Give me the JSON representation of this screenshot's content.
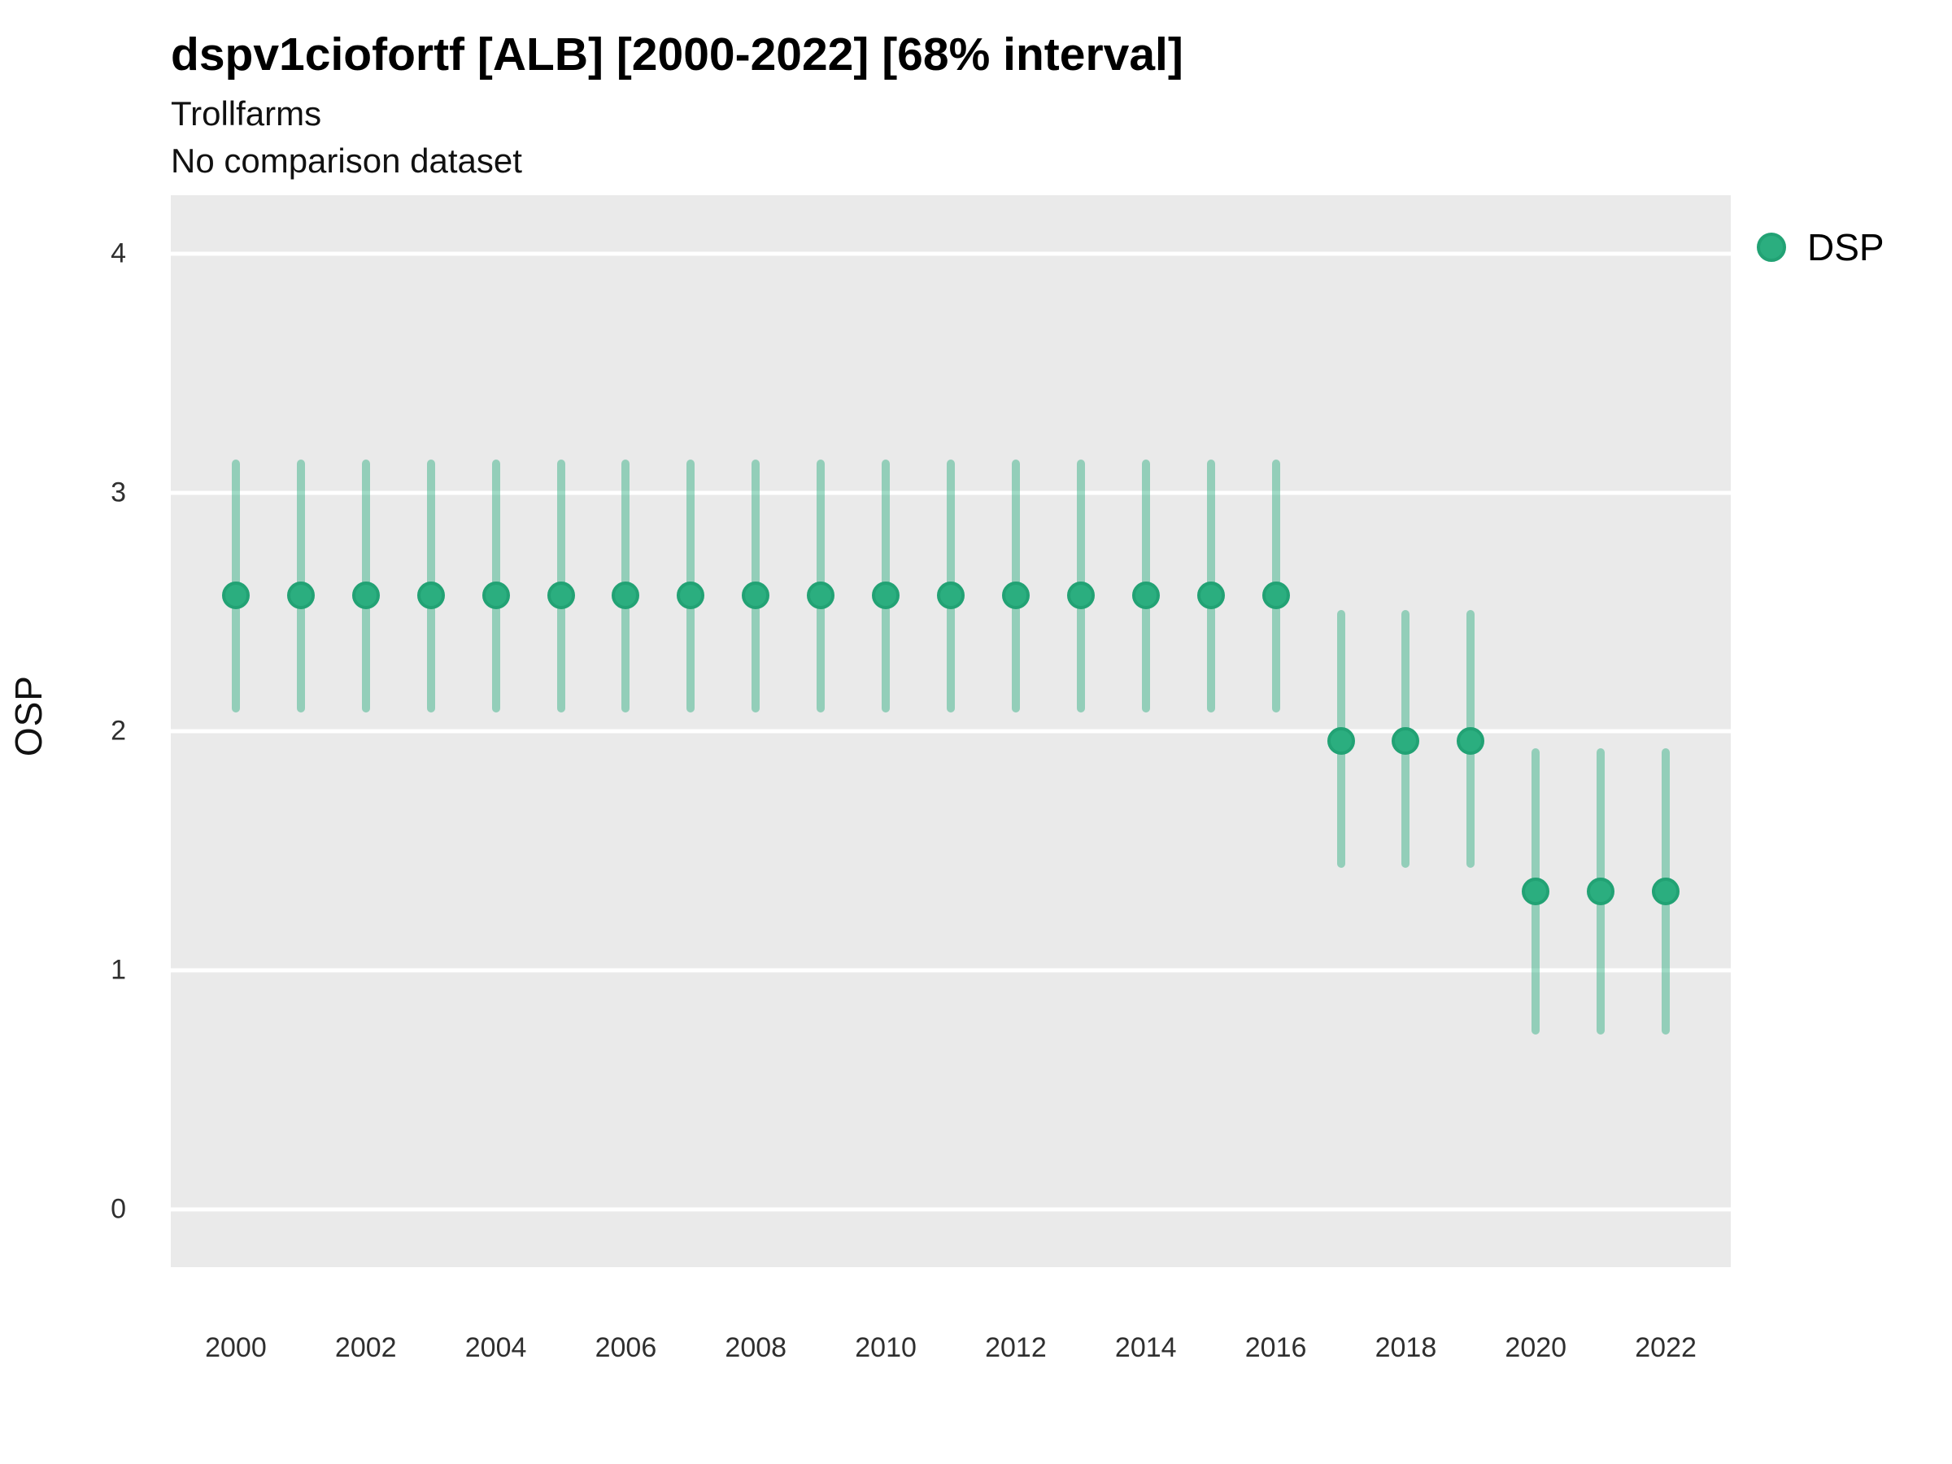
{
  "header": {
    "title": "dspv1ciofortf [ALB] [2000-2022] [68% interval]",
    "subtitle": "Trollfarms",
    "note": "No comparison dataset"
  },
  "legend": {
    "label": "DSP"
  },
  "colors": {
    "point_fill": "#2bae7f",
    "point_border": "#22a274",
    "interval_bar": "rgba(43,174,127,0.45)",
    "panel_background": "#eaeaea",
    "gridline": "#ffffff"
  },
  "chart_data": {
    "type": "pointrange",
    "title": "dspv1ciofortf [ALB] [2000-2022] [68% interval]",
    "subtitle": "Trollfarms",
    "note": "No comparison dataset",
    "xlabel": "",
    "ylabel": "OSP",
    "interval_level": "68%",
    "grid": "horizontal-major-only",
    "legend_position": "right",
    "xlim": [
      1999,
      2023
    ],
    "ylim": [
      -0.243,
      4.245
    ],
    "x_ticks": [
      2000,
      2002,
      2004,
      2006,
      2008,
      2010,
      2012,
      2014,
      2016,
      2018,
      2020,
      2022
    ],
    "y_ticks": [
      0,
      1,
      2,
      3,
      4
    ],
    "series": [
      {
        "name": "DSP",
        "points": [
          {
            "year": 2000,
            "y": 2.57,
            "lo": 2.08,
            "hi": 3.14
          },
          {
            "year": 2001,
            "y": 2.57,
            "lo": 2.08,
            "hi": 3.14
          },
          {
            "year": 2002,
            "y": 2.57,
            "lo": 2.08,
            "hi": 3.14
          },
          {
            "year": 2003,
            "y": 2.57,
            "lo": 2.08,
            "hi": 3.14
          },
          {
            "year": 2004,
            "y": 2.57,
            "lo": 2.08,
            "hi": 3.14
          },
          {
            "year": 2005,
            "y": 2.57,
            "lo": 2.08,
            "hi": 3.14
          },
          {
            "year": 2006,
            "y": 2.57,
            "lo": 2.08,
            "hi": 3.14
          },
          {
            "year": 2007,
            "y": 2.57,
            "lo": 2.08,
            "hi": 3.14
          },
          {
            "year": 2008,
            "y": 2.57,
            "lo": 2.08,
            "hi": 3.14
          },
          {
            "year": 2009,
            "y": 2.57,
            "lo": 2.08,
            "hi": 3.14
          },
          {
            "year": 2010,
            "y": 2.57,
            "lo": 2.08,
            "hi": 3.14
          },
          {
            "year": 2011,
            "y": 2.57,
            "lo": 2.08,
            "hi": 3.14
          },
          {
            "year": 2012,
            "y": 2.57,
            "lo": 2.08,
            "hi": 3.14
          },
          {
            "year": 2013,
            "y": 2.57,
            "lo": 2.08,
            "hi": 3.14
          },
          {
            "year": 2014,
            "y": 2.57,
            "lo": 2.08,
            "hi": 3.14
          },
          {
            "year": 2015,
            "y": 2.57,
            "lo": 2.08,
            "hi": 3.14
          },
          {
            "year": 2016,
            "y": 2.57,
            "lo": 2.08,
            "hi": 3.14
          },
          {
            "year": 2017,
            "y": 1.96,
            "lo": 1.43,
            "hi": 2.51
          },
          {
            "year": 2018,
            "y": 1.96,
            "lo": 1.43,
            "hi": 2.51
          },
          {
            "year": 2019,
            "y": 1.96,
            "lo": 1.43,
            "hi": 2.51
          },
          {
            "year": 2020,
            "y": 1.33,
            "lo": 0.73,
            "hi": 1.93
          },
          {
            "year": 2021,
            "y": 1.33,
            "lo": 0.73,
            "hi": 1.93
          },
          {
            "year": 2022,
            "y": 1.33,
            "lo": 0.73,
            "hi": 1.93
          }
        ]
      }
    ]
  }
}
